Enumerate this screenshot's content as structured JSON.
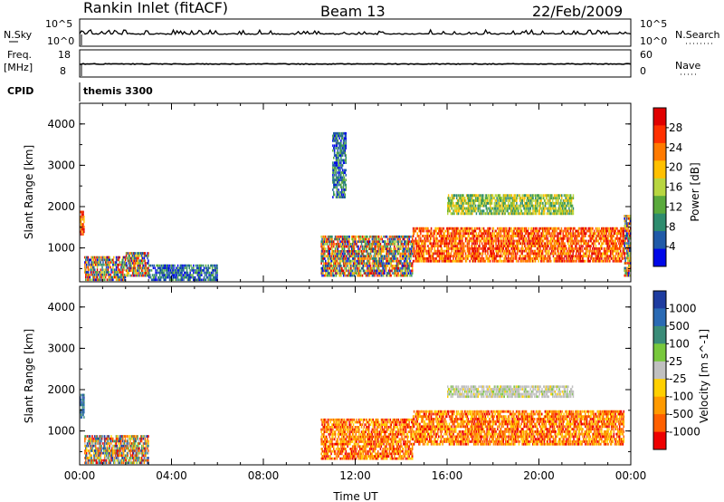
{
  "header": {
    "station": "Rankin Inlet (fitACF)",
    "beam": "Beam 13",
    "date": "22/Feb/2009"
  },
  "strips": {
    "nsky_label": "N.Sky",
    "nsky_ticks": [
      "10^5",
      "10^0"
    ],
    "nsearch_label": "N.Search",
    "nsearch_ticks": [
      "10^5",
      "10^0"
    ],
    "freq_label_1": "Freq.",
    "freq_label_2": "[MHz]",
    "freq_ticks": [
      "18",
      "8"
    ],
    "nave_label": "Nave",
    "nave_ticks": [
      "60",
      "0"
    ],
    "cpid_label": "CPID",
    "cpid_value": "themis 3300"
  },
  "chart_data": [
    {
      "type": "heatmap",
      "name": "power",
      "ylabel": "Slant Range [km]",
      "yticks": [
        "4000",
        "3000",
        "2000",
        "1000"
      ],
      "ylim": [
        180,
        4500
      ],
      "xlim": [
        0,
        24
      ],
      "colorbar": {
        "label": "Power [dB]",
        "ticks": [
          "28",
          "24",
          "20",
          "16",
          "12",
          "8",
          "4"
        ],
        "colors": [
          "#e00000",
          "#ff3000",
          "#ff7a00",
          "#ffc000",
          "#b8d640",
          "#5aaa3c",
          "#2e8c6e",
          "#205aa8",
          "#0008e8"
        ]
      },
      "echo_regions": [
        {
          "t0": 0.0,
          "t1": 0.2,
          "r0": 1300,
          "r1": 1900,
          "level": "high"
        },
        {
          "t0": 0.2,
          "t1": 2.0,
          "r0": 200,
          "r1": 800,
          "level": "mixed"
        },
        {
          "t0": 2.0,
          "t1": 3.0,
          "r0": 300,
          "r1": 900,
          "level": "mixed"
        },
        {
          "t0": 3.0,
          "t1": 6.0,
          "r0": 200,
          "r1": 600,
          "level": "low"
        },
        {
          "t0": 10.5,
          "t1": 14.5,
          "r0": 300,
          "r1": 1300,
          "level": "mixed"
        },
        {
          "t0": 11.0,
          "t1": 11.6,
          "r0": 2200,
          "r1": 3800,
          "level": "low"
        },
        {
          "t0": 14.5,
          "t1": 23.7,
          "r0": 650,
          "r1": 1500,
          "level": "high"
        },
        {
          "t0": 16.0,
          "t1": 21.5,
          "r0": 1800,
          "r1": 2300,
          "level": "mid"
        },
        {
          "t0": 23.7,
          "t1": 24.0,
          "r0": 300,
          "r1": 1800,
          "level": "mixed"
        }
      ]
    },
    {
      "type": "heatmap",
      "name": "velocity",
      "ylabel": "Slant Range [km]",
      "yticks": [
        "4000",
        "3000",
        "2000",
        "1000"
      ],
      "ylim": [
        180,
        4500
      ],
      "xlim": [
        0,
        24
      ],
      "xticks": [
        "00:00",
        "04:00",
        "08:00",
        "12:00",
        "16:00",
        "20:00",
        "00:00"
      ],
      "xlabel": "Time UT",
      "colorbar": {
        "label": "Velocity [m s^-1]",
        "ticks": [
          "1000",
          "500",
          "100",
          "25",
          "-25",
          "-100",
          "-500",
          "-1000"
        ],
        "colors": [
          "#1e3ca0",
          "#2a6ab4",
          "#3a8c78",
          "#78c83c",
          "#c0c0c0",
          "#ffd000",
          "#ff9a00",
          "#ff6000",
          "#ee0000"
        ]
      },
      "echo_regions": [
        {
          "t0": 0.0,
          "t1": 0.2,
          "r0": 1300,
          "r1": 1900,
          "level": "toward"
        },
        {
          "t0": 0.2,
          "t1": 3.0,
          "r0": 200,
          "r1": 900,
          "level": "mixed"
        },
        {
          "t0": 10.5,
          "t1": 14.5,
          "r0": 300,
          "r1": 1300,
          "level": "away"
        },
        {
          "t0": 14.5,
          "t1": 23.7,
          "r0": 650,
          "r1": 1500,
          "level": "away"
        },
        {
          "t0": 16.0,
          "t1": 21.5,
          "r0": 1800,
          "r1": 2100,
          "level": "zero"
        }
      ]
    }
  ]
}
